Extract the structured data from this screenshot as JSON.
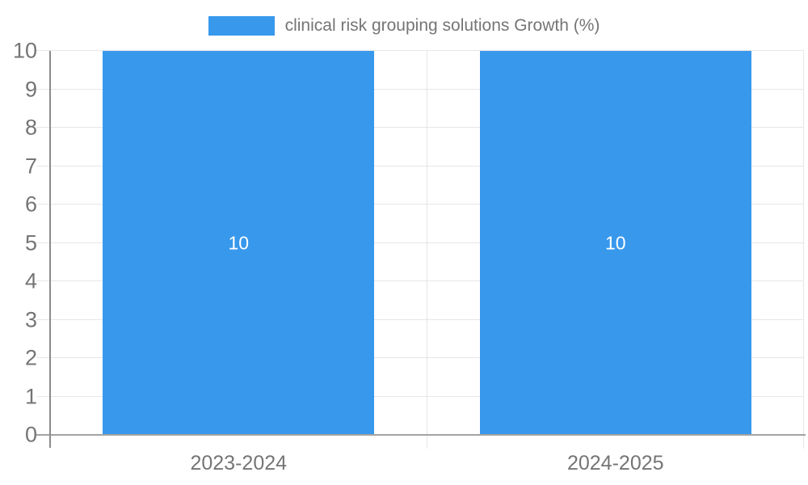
{
  "legend": {
    "label": "clinical risk grouping solutions Growth (%)"
  },
  "chart_data": {
    "type": "bar",
    "title": "",
    "xlabel": "",
    "ylabel": "",
    "categories": [
      "2023-2024",
      "2024-2025"
    ],
    "series": [
      {
        "name": "clinical risk grouping solutions Growth (%)",
        "values": [
          10,
          10
        ]
      }
    ],
    "value_labels": [
      "10",
      "10"
    ],
    "ylim": [
      0,
      10
    ],
    "ytick_step": 1,
    "grid": true,
    "legend_position": "top",
    "bar_width_fraction": 0.72
  },
  "style": {
    "bar_color": "#3898ec",
    "axis_text_color": "#757575",
    "grid_color": "#e6e6e6",
    "axis_line_color": "#8c8c8c",
    "baseline_color": "#a3a3a3",
    "value_label_color": "#ffffff"
  }
}
